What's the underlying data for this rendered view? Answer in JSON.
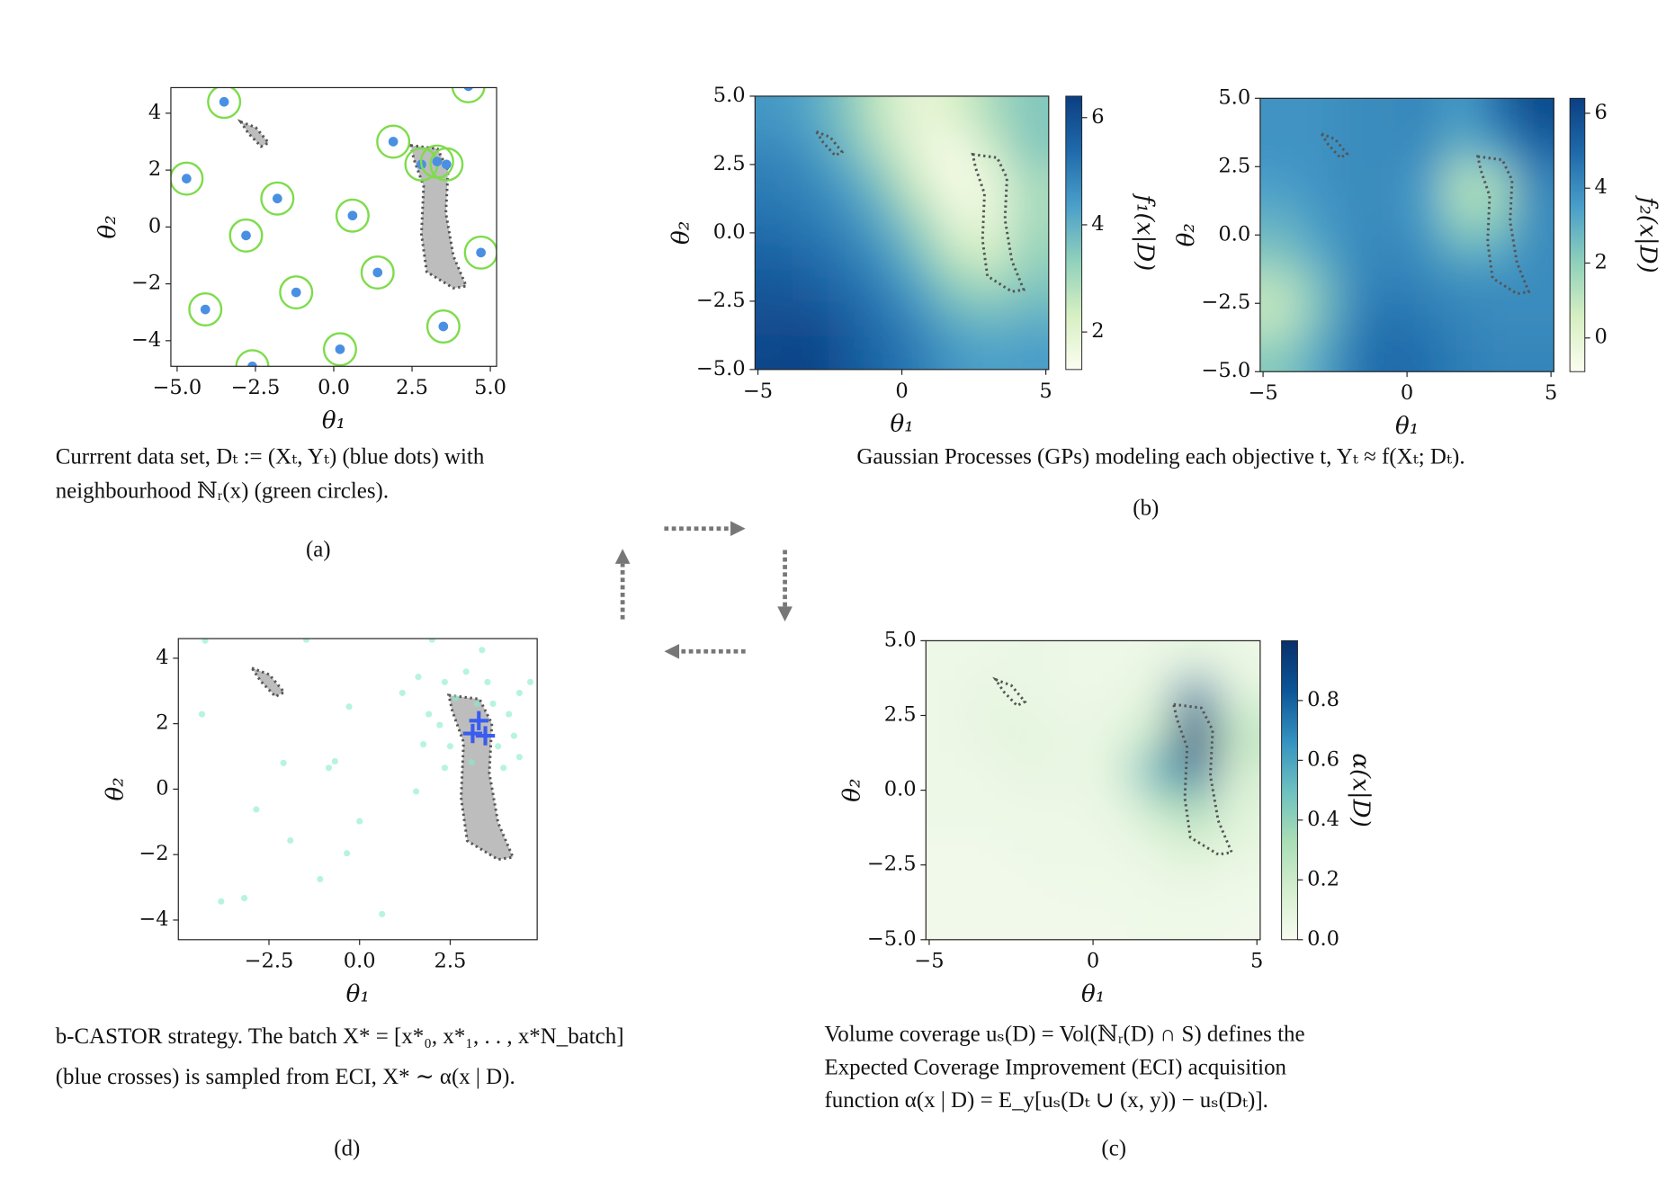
{
  "chart_data": [
    {
      "type": "scatter",
      "xlabel": "θ₁",
      "ylabel": "θ₂",
      "xlim": [
        -5.2,
        5.2
      ],
      "ylim": [
        -4.9,
        4.9
      ],
      "xticks": [
        {
          "value": -5,
          "label": "−5.0"
        },
        {
          "value": -2.5,
          "label": "−2.5"
        },
        {
          "value": 0,
          "label": "0.0"
        },
        2.5,
        {
          "value": 5,
          "label": "5.0"
        }
      ],
      "yticks": [
        {
          "value": -4,
          "label": "−4"
        },
        {
          "value": -2,
          "label": "−2"
        },
        0,
        2,
        4
      ],
      "x": [
        -3.5,
        4.3,
        1.9,
        2.8,
        3.3,
        3.6,
        -4.7,
        -1.8,
        0.6,
        -2.8,
        4.7,
        1.4,
        -1.2,
        -4.1,
        3.5,
        0.2,
        -2.6
      ],
      "y": [
        4.4,
        4.95,
        3.0,
        2.2,
        2.3,
        2.2,
        1.7,
        1.0,
        0.4,
        -0.3,
        -0.9,
        -1.6,
        -2.3,
        -2.9,
        -3.5,
        -4.3,
        -4.9
      ],
      "color": "#4a90e2",
      "ring_color": "#7ddc4a",
      "region_fill": "#bdbdbd",
      "regions": [
        {
          "x": [
            -2.97,
            -2.49,
            -2.08,
            -2.32,
            -2.73
          ],
          "y": [
            3.7,
            3.5,
            2.96,
            2.83,
            3.3
          ]
        },
        {
          "x": [
            2.46,
            3.31,
            3.65,
            3.58,
            3.82,
            4.23,
            3.82,
            2.97,
            2.8,
            2.87,
            2.56
          ],
          "y": [
            2.87,
            2.75,
            2.0,
            0.49,
            -1.02,
            -2.08,
            -2.15,
            -1.58,
            -0.26,
            1.43,
            2.38
          ]
        }
      ],
      "caption": [
        "Currrent data set, Dₜ := (Xₜ, Yₜ)  (blue dots) with",
        "neighbourhood  ℕᵣ(x)  (green circles)."
      ],
      "panel_label": "(a)"
    },
    {
      "type": "heatmap",
      "xlabel": "θ₁",
      "ylabel": "θ₂",
      "xlim": [
        -5.1,
        5.1
      ],
      "ylim": [
        -5,
        5
      ],
      "xticks": [
        {
          "value": -5,
          "label": "−5"
        },
        0,
        5
      ],
      "yticks": [
        {
          "value": -5,
          "label": "−5.0"
        },
        {
          "value": -2.5,
          "label": "−2.5"
        },
        {
          "value": 0,
          "label": "0.0"
        },
        2.5,
        {
          "value": 5,
          "label": "5.0"
        }
      ],
      "x_centers": [
        -4.375,
        -3.125,
        -1.875,
        -0.625,
        0.625,
        1.875,
        3.125,
        4.375
      ],
      "y_centers": [
        4.375,
        3.125,
        1.875,
        0.625,
        -0.625,
        -1.875,
        -3.125,
        -4.375
      ],
      "z": [
        [
          4.5,
          4.2,
          3.5,
          2.5,
          1.8,
          2.2,
          3.0,
          3.5
        ],
        [
          4.8,
          4.5,
          3.8,
          2.8,
          1.8,
          1.5,
          2.5,
          3.5
        ],
        [
          5.0,
          4.8,
          4.3,
          3.5,
          2.3,
          1.4,
          1.8,
          3.0
        ],
        [
          5.2,
          5.0,
          4.7,
          4.0,
          3.0,
          1.8,
          1.8,
          3.0
        ],
        [
          5.5,
          5.3,
          5.0,
          4.5,
          3.6,
          2.5,
          2.2,
          3.2
        ],
        [
          5.8,
          5.6,
          5.3,
          4.9,
          4.2,
          3.3,
          3.0,
          3.5
        ],
        [
          6.0,
          6.0,
          5.6,
          5.2,
          4.7,
          4.0,
          3.8,
          4.0
        ],
        [
          6.2,
          6.3,
          5.8,
          5.4,
          5.0,
          4.5,
          4.3,
          4.4
        ]
      ],
      "colormap": [
        "#fbfdf0",
        "#d6efc2",
        "#8fd0bb",
        "#4a9fc9",
        "#1f6aab",
        "#0b3f82"
      ],
      "clim": [
        1.3,
        6.4
      ],
      "cticks": [
        2,
        4,
        6
      ],
      "colorbar_label": "f₁(x|D)",
      "caption": [
        "Gaussian Processes (GPs) modeling each objective t, Yₜ ≈ f(Xₜ; Dₜ)."
      ],
      "panel_label": "(b)"
    },
    {
      "type": "heatmap",
      "xlabel": "θ₁",
      "ylabel": "θ₂",
      "xlim": [
        -5.1,
        5.1
      ],
      "ylim": [
        -5,
        5
      ],
      "xticks": [
        {
          "value": -5,
          "label": "−5"
        },
        0,
        5
      ],
      "yticks": [
        {
          "value": -5,
          "label": "−5.0"
        },
        {
          "value": -2.5,
          "label": "−2.5"
        },
        {
          "value": 0,
          "label": "0.0"
        },
        2.5,
        {
          "value": 5,
          "label": "5.0"
        }
      ],
      "x_centers": [
        -4.375,
        -3.125,
        -1.875,
        -0.625,
        0.625,
        1.875,
        3.125,
        4.375
      ],
      "y_centers": [
        4.375,
        3.125,
        1.875,
        0.625,
        -0.625,
        -1.875,
        -3.125,
        -4.375
      ],
      "z": [
        [
          3.8,
          3.8,
          4.0,
          4.0,
          4.2,
          3.5,
          4.8,
          6.0
        ],
        [
          3.8,
          3.8,
          4.0,
          4.0,
          4.0,
          2.8,
          3.5,
          5.0
        ],
        [
          3.5,
          3.8,
          4.0,
          4.0,
          3.6,
          1.2,
          1.5,
          4.2
        ],
        [
          3.0,
          3.6,
          4.0,
          4.0,
          3.6,
          1.8,
          2.0,
          4.0
        ],
        [
          2.4,
          3.2,
          4.0,
          4.2,
          3.9,
          3.0,
          3.2,
          4.0
        ],
        [
          1.2,
          2.4,
          4.0,
          4.4,
          4.2,
          4.0,
          4.0,
          4.0
        ],
        [
          1.0,
          2.5,
          4.2,
          4.8,
          4.5,
          4.2,
          4.0,
          4.0
        ],
        [
          2.2,
          3.2,
          4.5,
          5.0,
          4.8,
          4.4,
          4.2,
          4.2
        ]
      ],
      "colormap": [
        "#fbfdf0",
        "#d6efc2",
        "#8fd0bb",
        "#4a9fc9",
        "#1f6aab",
        "#0b3f82"
      ],
      "clim": [
        -0.9,
        6.4
      ],
      "cticks": [
        0,
        2,
        4,
        6
      ],
      "colorbar_label": "f₂(x|D)"
    },
    {
      "type": "heatmap",
      "xlabel": "θ₁",
      "ylabel": "θ₂",
      "xlim": [
        -5.1,
        5.1
      ],
      "ylim": [
        -5,
        5
      ],
      "xticks": [
        {
          "value": -5,
          "label": "−5"
        },
        0,
        5
      ],
      "yticks": [
        {
          "value": -5,
          "label": "−5.0"
        },
        {
          "value": -2.5,
          "label": "−2.5"
        },
        {
          "value": 0,
          "label": "0.0"
        },
        2.5,
        {
          "value": 5,
          "label": "5.0"
        }
      ],
      "x_centers": [
        -4.375,
        -3.125,
        -1.875,
        -0.625,
        0.625,
        1.875,
        3.125,
        4.375
      ],
      "y_centers": [
        4.375,
        3.125,
        1.875,
        0.625,
        -0.625,
        -1.875,
        -3.125,
        -4.375
      ],
      "z": [
        [
          0.05,
          0.05,
          0.06,
          0.05,
          0.05,
          0.05,
          0.08,
          0.05
        ],
        [
          0.05,
          0.08,
          0.06,
          0.05,
          0.05,
          0.1,
          0.75,
          0.1
        ],
        [
          0.05,
          0.08,
          0.1,
          0.06,
          0.08,
          0.2,
          0.98,
          0.25
        ],
        [
          0.05,
          0.05,
          0.08,
          0.06,
          0.1,
          0.55,
          0.8,
          0.15
        ],
        [
          0.05,
          0.05,
          0.05,
          0.05,
          0.06,
          0.2,
          0.35,
          0.1
        ],
        [
          0.03,
          0.03,
          0.05,
          0.05,
          0.05,
          0.08,
          0.15,
          0.08
        ],
        [
          0.03,
          0.03,
          0.03,
          0.04,
          0.04,
          0.05,
          0.06,
          0.04
        ],
        [
          0.03,
          0.03,
          0.03,
          0.03,
          0.03,
          0.04,
          0.04,
          0.03
        ]
      ],
      "colormap": [
        "#f7fcf0",
        "#d4eece",
        "#a8ddb5",
        "#6cc0c0",
        "#3391c0",
        "#0c5597",
        "#08306b"
      ],
      "clim": [
        0,
        1.0
      ],
      "cticks": [
        {
          "value": 0,
          "label": "0.0"
        },
        0.2,
        0.4,
        0.6,
        0.8
      ],
      "colorbar_label": "α(x|D)",
      "caption": [
        "Volume coverage uₛ(D) = Vol(ℕᵣ(D) ∩ S) defines the",
        "Expected Coverage Improvement (ECI) acquisition",
        "function  α(x | D) = E_y[uₛ(Dₜ ∪ (x, y)) − uₛ(Dₜ)]."
      ],
      "panel_label": "(c)"
    },
    {
      "type": "scatter",
      "xlabel": "θ₁",
      "ylabel": "θ₂",
      "xlim": [
        -5.0,
        4.9
      ],
      "ylim": [
        -4.6,
        4.6
      ],
      "xticks": [
        {
          "value": -2.5,
          "label": "−2.5"
        },
        {
          "value": 0,
          "label": "0.0"
        },
        2.5
      ],
      "yticks": [
        {
          "value": -4,
          "label": "−4"
        },
        {
          "value": -2,
          "label": "−2"
        },
        0,
        2,
        4
      ],
      "x": [
        -4.26,
        -1.47,
        -4.35,
        -2.1,
        -0.29,
        -0.68,
        -0.85,
        -2.85,
        -1.91,
        0,
        -0.35,
        -1.09,
        -3.18,
        -3.82,
        0.62,
        2.0,
        1.56,
        1.76,
        1.18,
        2.35,
        2.94,
        3.53,
        4.41,
        4.12,
        3.82,
        4.41,
        2.21,
        2.5,
        1.91,
        3.24,
        3.68,
        2.65,
        3.09,
        3.97,
        4.71,
        1.62,
        3.38,
        4.26,
        2.35
      ],
      "y": [
        4.54,
        4.57,
        2.29,
        0.8,
        2.52,
        0.85,
        0.65,
        -0.62,
        -1.57,
        -0.98,
        -1.96,
        -2.75,
        -3.33,
        -3.43,
        -3.82,
        4.57,
        -0.07,
        1.37,
        2.94,
        3.27,
        3.59,
        3.27,
        2.94,
        2.29,
        1.31,
        0.98,
        1.96,
        1.31,
        2.29,
        2.61,
        2.61,
        2.78,
        0.82,
        0.65,
        3.27,
        3.43,
        4.25,
        1.63,
        0.65
      ],
      "color": "#86ecc6",
      "region_fill": "#bdbdbd",
      "crosses": {
        "x": [
          3.29,
          3.47,
          3.12
        ],
        "y": [
          2.09,
          1.63,
          1.7
        ],
        "color": "#3a5cf0"
      },
      "caption": [
        "b-CASTOR strategy. The batch X* = [x*₀, x*₁, . . , x*N_batch]",
        "(blue crosses) is sampled from ECI, X* ∼ α(x | D)."
      ],
      "panel_label": "(d)"
    }
  ]
}
